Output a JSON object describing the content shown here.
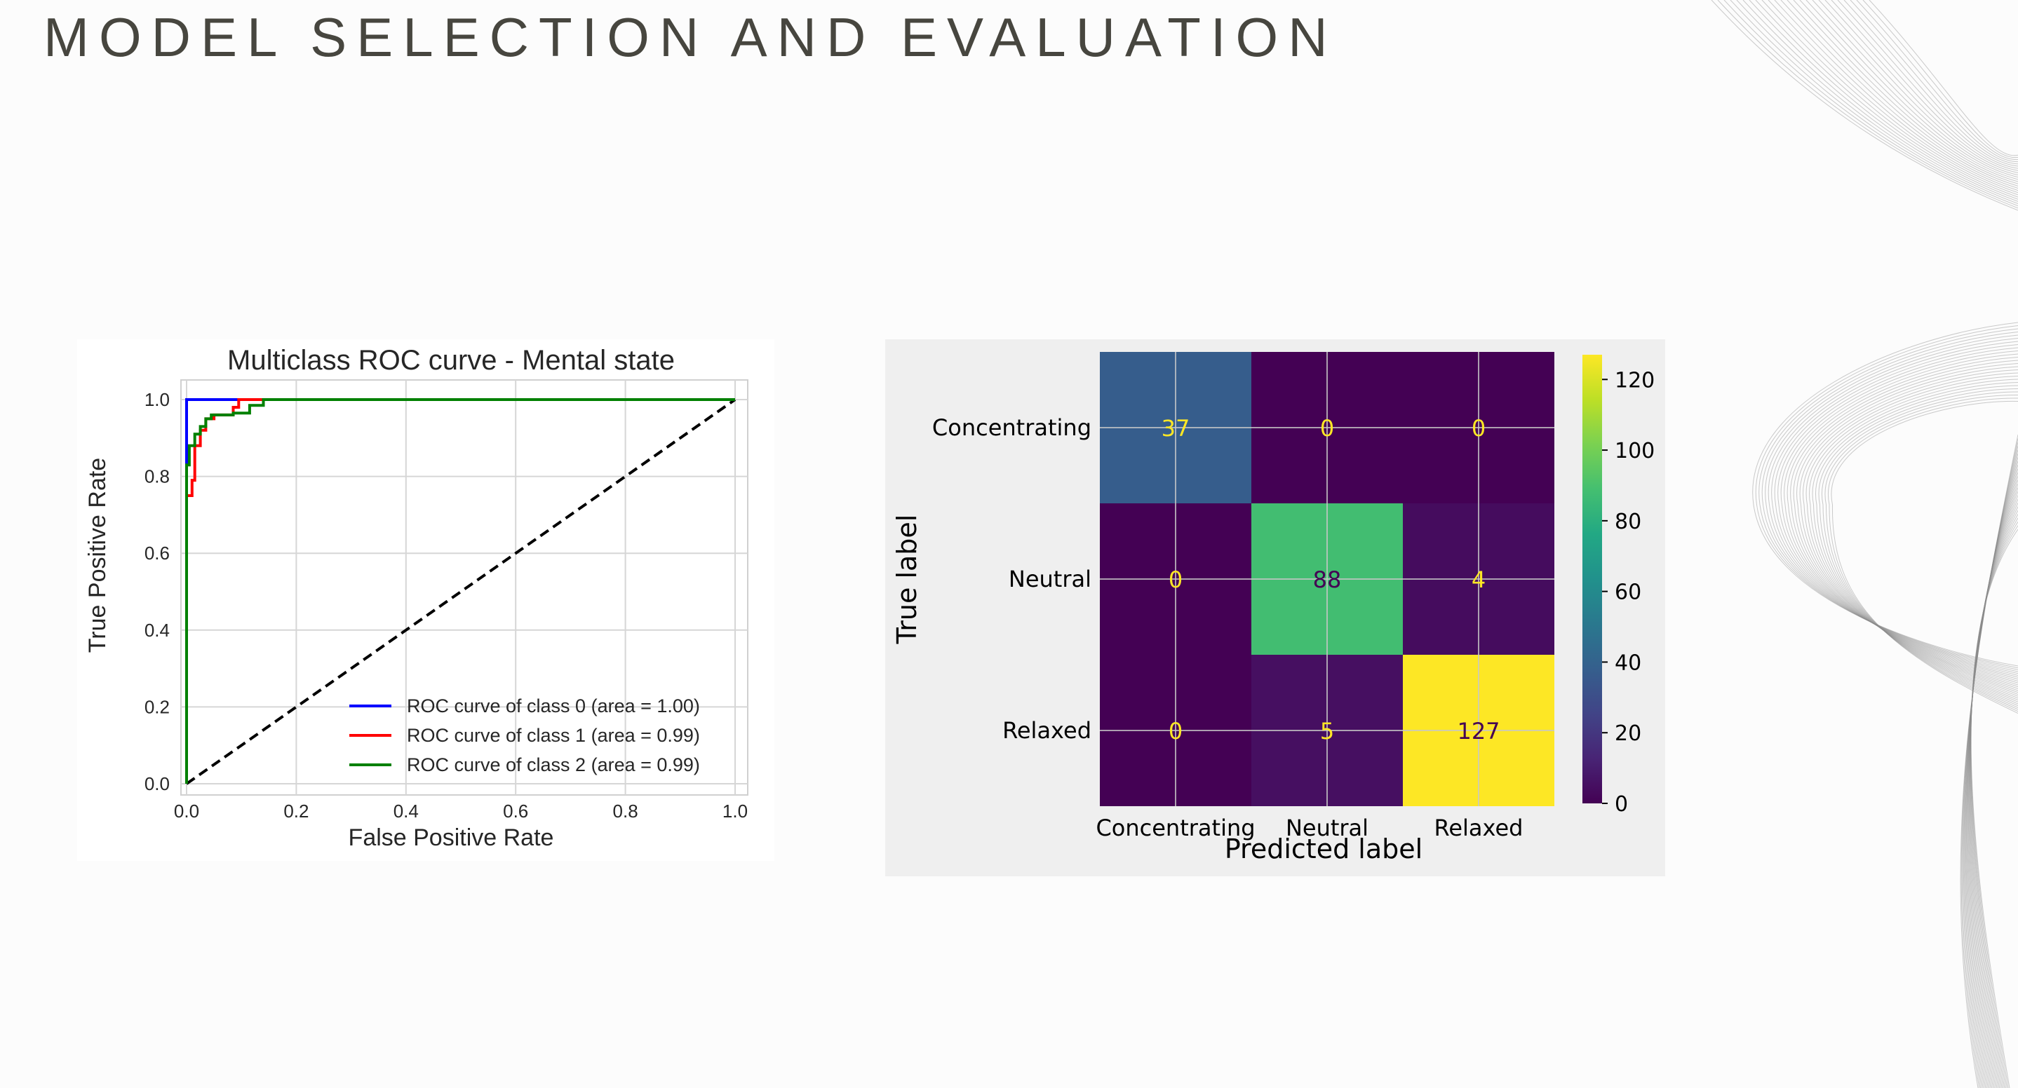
{
  "slide": {
    "title": "MODEL SELECTION AND EVALUATION"
  },
  "colors": {
    "background": "#fcfcfc",
    "title": "#47463f",
    "class0": "#0000ff",
    "class1": "#ff0000",
    "class2": "#008000",
    "diagonal": "#000000"
  },
  "chart_data": [
    {
      "type": "line",
      "title": "Multiclass ROC curve - Mental state",
      "xlabel": "False Positive Rate",
      "ylabel": "True Positive Rate",
      "xlim": [
        0.0,
        1.0
      ],
      "ylim": [
        0.0,
        1.0
      ],
      "xticks": [
        "0.0",
        "0.2",
        "0.4",
        "0.6",
        "0.8",
        "1.0"
      ],
      "yticks": [
        "0.0",
        "0.2",
        "0.4",
        "0.6",
        "0.8",
        "1.0"
      ],
      "grid": true,
      "legend_position": "lower-right",
      "series": [
        {
          "name": "ROC curve of class 0 (area = 1.00)",
          "color": "#0000ff",
          "x": [
            0.0,
            0.0,
            0.0,
            0.0,
            0.09,
            0.09,
            1.0
          ],
          "y": [
            0.0,
            0.88,
            0.88,
            1.0,
            1.0,
            1.0,
            1.0
          ]
        },
        {
          "name": "ROC curve of class 1 (area = 0.99)",
          "color": "#ff0000",
          "x": [
            0.0,
            0.0,
            0.01,
            0.01,
            0.015,
            0.015,
            0.025,
            0.025,
            0.035,
            0.035,
            0.05,
            0.05,
            0.085,
            0.085,
            0.095,
            0.095,
            0.14,
            0.14,
            1.0
          ],
          "y": [
            0.0,
            0.75,
            0.75,
            0.79,
            0.79,
            0.88,
            0.88,
            0.92,
            0.92,
            0.95,
            0.95,
            0.96,
            0.96,
            0.98,
            0.98,
            1.0,
            1.0,
            1.0,
            1.0
          ]
        },
        {
          "name": "ROC curve of class 2 (area = 0.99)",
          "color": "#008000",
          "x": [
            0.0,
            0.0,
            0.005,
            0.005,
            0.015,
            0.015,
            0.025,
            0.025,
            0.035,
            0.035,
            0.045,
            0.045,
            0.085,
            0.085,
            0.115,
            0.115,
            0.14,
            0.14,
            1.0
          ],
          "y": [
            0.0,
            0.83,
            0.83,
            0.88,
            0.88,
            0.91,
            0.91,
            0.93,
            0.93,
            0.95,
            0.95,
            0.96,
            0.96,
            0.965,
            0.965,
            0.985,
            0.985,
            1.0,
            1.0
          ]
        },
        {
          "name": "",
          "color": "#000000",
          "style": "dashed",
          "x": [
            0.0,
            1.0
          ],
          "y": [
            0.0,
            1.0
          ]
        }
      ]
    },
    {
      "type": "heatmap",
      "xlabel": "Predicted label",
      "ylabel": "True label",
      "x_categories": [
        "Concentrating",
        "Neutral",
        "Relaxed"
      ],
      "y_categories": [
        "Concentrating",
        "Neutral",
        "Relaxed"
      ],
      "values": [
        [
          37,
          0,
          0
        ],
        [
          0,
          88,
          4
        ],
        [
          0,
          5,
          127
        ]
      ],
      "colormap": "viridis",
      "colorbar": {
        "min": 0,
        "max": 127,
        "ticks": [
          0,
          20,
          40,
          60,
          80,
          100,
          120
        ]
      },
      "grid": true
    }
  ]
}
